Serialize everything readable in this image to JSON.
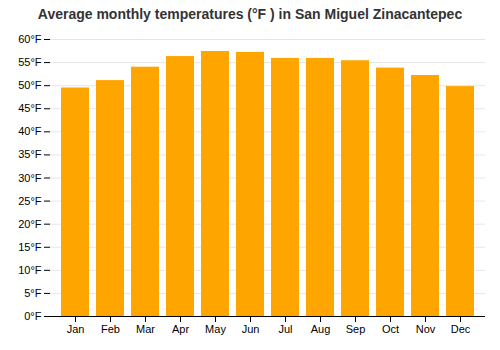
{
  "chart_data": {
    "type": "bar",
    "title": "Average monthly temperatures (°F ) in San Miguel Zinacantepec",
    "categories": [
      "Jan",
      "Feb",
      "Mar",
      "Apr",
      "May",
      "Jun",
      "Jul",
      "Aug",
      "Sep",
      "Oct",
      "Nov",
      "Dec"
    ],
    "values": [
      49.5,
      51.1,
      54.0,
      56.3,
      57.4,
      57.2,
      55.9,
      55.9,
      55.4,
      53.8,
      52.2,
      49.8
    ],
    "color": "#FFA500",
    "ylim": [
      0,
      60
    ],
    "yticks": [
      {
        "value": 0,
        "label": "0°F"
      },
      {
        "value": 5,
        "label": "5°F"
      },
      {
        "value": 10,
        "label": "10°F"
      },
      {
        "value": 15,
        "label": "15°F"
      },
      {
        "value": 20,
        "label": "20°F"
      },
      {
        "value": 25,
        "label": "25°F"
      },
      {
        "value": 30,
        "label": "30°F"
      },
      {
        "value": 35,
        "label": "35°F"
      },
      {
        "value": 40,
        "label": "40°F"
      },
      {
        "value": 45,
        "label": "45°F"
      },
      {
        "value": 50,
        "label": "50°F"
      },
      {
        "value": 55,
        "label": "55°F"
      },
      {
        "value": 60,
        "label": "60°F"
      }
    ],
    "grid": true
  }
}
